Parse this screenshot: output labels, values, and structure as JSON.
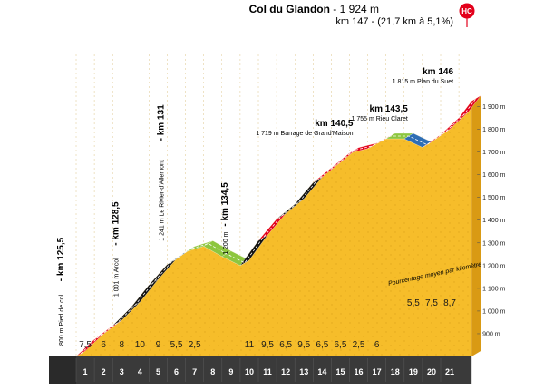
{
  "title": {
    "name": "Col du Glandon",
    "altitude": " - 1 924 m",
    "subtitle": "km 147 - (21,7 km à 5,1%)",
    "badge": "HC"
  },
  "note": "Pourcentage moyen par kilomètre",
  "waypoints": [
    {
      "km": 0.0,
      "kmlabel": "km 125,5",
      "altlabel": "800 m",
      "name": "Pied de col"
    },
    {
      "km": 3.0,
      "kmlabel": "km 128,5",
      "altlabel": "1 001 m",
      "name": "Arcol"
    },
    {
      "km": 5.5,
      "kmlabel": "km 131",
      "altlabel": "1 241 m",
      "name": "Le Rivier-d'Allemont"
    },
    {
      "km": 9.0,
      "kmlabel": "km 134,5",
      "altlabel": "1 200 m",
      "name": ""
    },
    {
      "km": 15.0,
      "kmlabel": "km 140,5",
      "altlabel": "1 719 m",
      "name": "Barrage de Grand'Maison"
    },
    {
      "km": 18.0,
      "kmlabel": "km 143,5",
      "altlabel": "1 755 m",
      "name": "Rieu Claret"
    },
    {
      "km": 20.5,
      "kmlabel": "km 146",
      "altlabel": "1 815 m",
      "name": "Plan du Suet"
    }
  ],
  "chart_data": {
    "type": "area",
    "title": "Col du Glandon - 1 924 m",
    "subtitle": "km 147 - (21,7 km à 5,1%)",
    "xlabel": "",
    "ylabel": "",
    "ylim": [
      800,
      1950
    ],
    "yticks": [
      "900 m",
      "1 000 m",
      "1 100 m",
      "1 200 m",
      "1 300 m",
      "1 400 m",
      "1 500 m",
      "1 600 m",
      "1 700 m",
      "1 800 m",
      "1 900 m"
    ],
    "ytick_values": [
      900,
      1000,
      1100,
      1200,
      1300,
      1400,
      1500,
      1600,
      1700,
      1800,
      1900
    ],
    "categories": [
      "1",
      "2",
      "3",
      "4",
      "5",
      "6",
      "7",
      "8",
      "9",
      "10",
      "11",
      "12",
      "13",
      "14",
      "15",
      "16",
      "17",
      "18",
      "19",
      "20",
      "21"
    ],
    "gradients": [
      "7,5",
      "6",
      "8",
      "10",
      "9",
      "5,5",
      "2,5",
      "",
      "",
      "11",
      "9,5",
      "6,5",
      "9,5",
      "6,5",
      "6,5",
      "2,5",
      "6",
      "",
      "5,5",
      "7,5",
      "8,7"
    ],
    "profile": {
      "km": [
        0,
        1,
        2,
        3,
        4,
        5,
        6,
        7,
        8,
        9,
        10,
        11,
        12,
        13,
        14,
        15,
        16,
        17,
        18,
        19,
        20,
        21,
        21.7
      ],
      "altitude": [
        800,
        875,
        935,
        1015,
        1115,
        1205,
        1260,
        1285,
        1240,
        1200,
        1310,
        1405,
        1470,
        1565,
        1630,
        1695,
        1715,
        1758,
        1758,
        1720,
        1776,
        1850,
        1924
      ]
    },
    "gradient_color_scale": {
      "flat": "#8dc63f",
      "moderate": "#2e6eb5",
      "hard": "#111111",
      "very_hard": "#e3001b"
    },
    "segment_classes": [
      "very_hard",
      "very_hard",
      "hard",
      "hard",
      "hard",
      "moderate",
      "flat",
      "flat",
      "flat",
      "hard",
      "very_hard",
      "hard",
      "hard",
      "very_hard",
      "very_hard",
      "very_hard",
      "very_hard",
      "flat",
      "moderate",
      "very_hard",
      "very_hard",
      "very_hard"
    ],
    "fill_color": "#f6bd2a",
    "base_color": "#3a3a3a",
    "grid": true
  }
}
